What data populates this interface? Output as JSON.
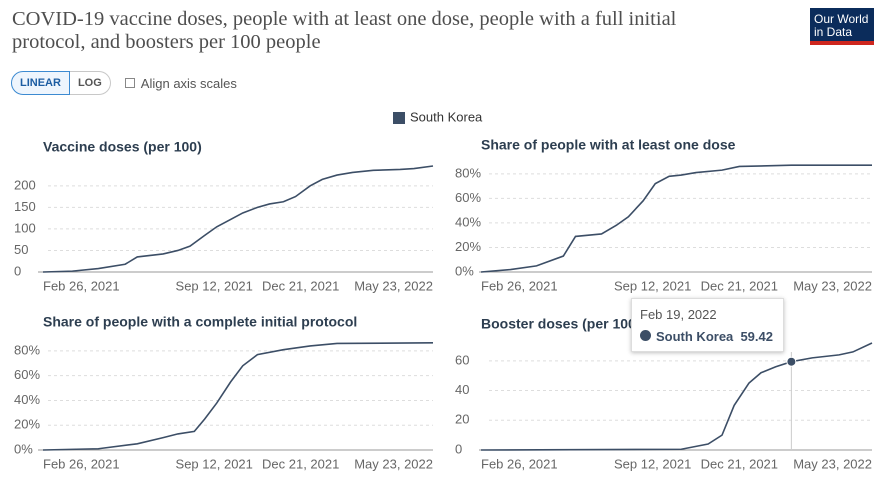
{
  "title": "COVID-19 vaccine doses, people with at least one dose, people with a full initial protocol, and boosters per 100 people",
  "logo": "Our World in Data",
  "controls": {
    "linear": "LINEAR",
    "log": "LOG",
    "align": "Align axis scales"
  },
  "tooltip": {
    "date": "Feb 19, 2022",
    "series": "South Korea",
    "value": 59.42
  },
  "chart_data": [
    {
      "type": "line",
      "title": "Vaccine doses (per 100)",
      "x": [
        "2021-02-26",
        "2021-04-01",
        "2021-05-01",
        "2021-06-01",
        "2021-06-15",
        "2021-07-15",
        "2021-08-01",
        "2021-08-15",
        "2021-09-01",
        "2021-09-15",
        "2021-10-01",
        "2021-10-15",
        "2021-11-01",
        "2021-11-15",
        "2021-12-01",
        "2021-12-15",
        "2022-01-01",
        "2022-01-15",
        "2022-02-01",
        "2022-02-19",
        "2022-03-15",
        "2022-04-15",
        "2022-05-01",
        "2022-05-23"
      ],
      "series": [
        {
          "name": "South Korea",
          "color": "#3c4e66",
          "values": [
            0,
            2,
            8,
            18,
            35,
            42,
            50,
            60,
            85,
            105,
            122,
            137,
            150,
            158,
            163,
            175,
            200,
            215,
            225,
            231,
            236,
            238,
            240,
            246
          ]
        }
      ],
      "xlim": [
        "2021-02-26",
        "2022-05-23"
      ],
      "xticks": [
        {
          "value": "2021-02-26",
          "label": "Feb 26, 2021"
        },
        {
          "value": "2021-09-12",
          "label": "Sep 12, 2021"
        },
        {
          "value": "2021-12-21",
          "label": "Dec 21, 2021"
        },
        {
          "value": "2022-05-23",
          "label": "May 23, 2022"
        }
      ],
      "ylim": [
        0,
        246
      ],
      "yticks": [
        0,
        50,
        100,
        150,
        200
      ],
      "grid": true
    },
    {
      "type": "line",
      "title": "Share of people with at least one dose",
      "x": [
        "2021-02-26",
        "2021-04-01",
        "2021-05-01",
        "2021-06-01",
        "2021-06-15",
        "2021-07-15",
        "2021-08-01",
        "2021-08-15",
        "2021-09-01",
        "2021-09-15",
        "2021-10-01",
        "2021-10-15",
        "2021-11-01",
        "2021-12-01",
        "2021-12-21",
        "2022-02-19",
        "2022-05-23"
      ],
      "series": [
        {
          "name": "South Korea",
          "color": "#3c4e66",
          "values": [
            0,
            2,
            5,
            13,
            29,
            31,
            38,
            45,
            58,
            72,
            78,
            79,
            81,
            83,
            86,
            87,
            87
          ]
        }
      ],
      "xlim": [
        "2021-02-26",
        "2022-05-23"
      ],
      "xticks": [
        {
          "value": "2021-02-26",
          "label": "Feb 26, 2021"
        },
        {
          "value": "2021-09-12",
          "label": "Sep 12, 2021"
        },
        {
          "value": "2021-12-21",
          "label": "Dec 21, 2021"
        },
        {
          "value": "2022-05-23",
          "label": "May 23, 2022"
        }
      ],
      "ylim": [
        0,
        88
      ],
      "yticks": [
        {
          "value": 0,
          "label": "0%"
        },
        {
          "value": 20,
          "label": "20%"
        },
        {
          "value": 40,
          "label": "40%"
        },
        {
          "value": 60,
          "label": "60%"
        },
        {
          "value": 80,
          "label": "80%"
        }
      ],
      "grid": true
    },
    {
      "type": "line",
      "title": "Share of people with a complete initial protocol",
      "x": [
        "2021-02-26",
        "2021-05-01",
        "2021-06-15",
        "2021-07-15",
        "2021-08-01",
        "2021-08-20",
        "2021-09-01",
        "2021-09-15",
        "2021-10-01",
        "2021-10-15",
        "2021-11-01",
        "2021-12-01",
        "2022-01-01",
        "2022-02-01",
        "2022-05-23"
      ],
      "series": [
        {
          "name": "South Korea",
          "color": "#3c4e66",
          "values": [
            0,
            1,
            5,
            10,
            13,
            15,
            25,
            38,
            55,
            68,
            77,
            81,
            84,
            86,
            86.5
          ]
        }
      ],
      "xlim": [
        "2021-02-26",
        "2022-05-23"
      ],
      "xticks": [
        {
          "value": "2021-02-26",
          "label": "Feb 26, 2021"
        },
        {
          "value": "2021-09-12",
          "label": "Sep 12, 2021"
        },
        {
          "value": "2021-12-21",
          "label": "Dec 21, 2021"
        },
        {
          "value": "2022-05-23",
          "label": "May 23, 2022"
        }
      ],
      "ylim": [
        0,
        88
      ],
      "yticks": [
        {
          "value": 0,
          "label": "0%"
        },
        {
          "value": 20,
          "label": "20%"
        },
        {
          "value": 40,
          "label": "40%"
        },
        {
          "value": 60,
          "label": "60%"
        },
        {
          "value": 80,
          "label": "80%"
        }
      ],
      "grid": true
    },
    {
      "type": "line",
      "title": "Booster doses (per 100)",
      "x": [
        "2021-02-26",
        "2021-10-15",
        "2021-11-15",
        "2021-12-01",
        "2021-12-15",
        "2022-01-01",
        "2022-01-15",
        "2022-02-01",
        "2022-02-19",
        "2022-03-15",
        "2022-04-15",
        "2022-05-01",
        "2022-05-23"
      ],
      "series": [
        {
          "name": "South Korea",
          "color": "#3c4e66",
          "values": [
            0,
            0.5,
            4,
            10,
            30,
            45,
            52,
            56,
            59.42,
            62,
            64,
            66,
            72
          ]
        }
      ],
      "xlim": [
        "2021-02-26",
        "2022-05-23"
      ],
      "xticks": [
        {
          "value": "2021-02-26",
          "label": "Feb 26, 2021"
        },
        {
          "value": "2021-09-12",
          "label": "Sep 12, 2021"
        },
        {
          "value": "2021-12-21",
          "label": "Dec 21, 2021"
        },
        {
          "value": "2022-05-23",
          "label": "May 23, 2022"
        }
      ],
      "ylim": [
        0,
        72
      ],
      "yticks": [
        0,
        20,
        40,
        60
      ],
      "grid": true
    }
  ]
}
